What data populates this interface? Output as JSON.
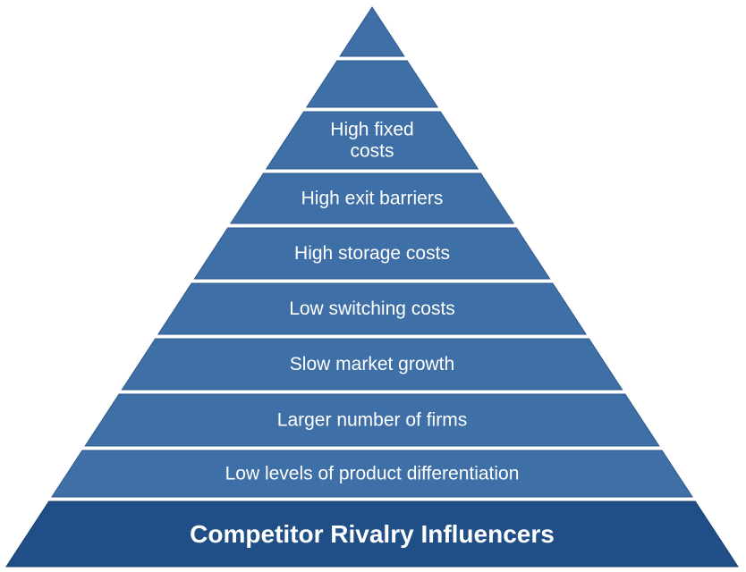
{
  "pyramid": {
    "base_label": "Competitor Rivalry Influencers",
    "tiers": [
      {
        "label": ""
      },
      {
        "label": ""
      },
      {
        "label": "High fixed costs",
        "lines": [
          "High fixed",
          "costs"
        ]
      },
      {
        "label": "High exit barriers"
      },
      {
        "label": "High storage costs"
      },
      {
        "label": "Low switching costs"
      },
      {
        "label": "Slow market growth"
      },
      {
        "label": "Larger number of firms"
      },
      {
        "label": "Low levels of product differentiation"
      }
    ],
    "colors": {
      "tier": "#3e6fa6",
      "base": "#1f4f86",
      "gap": "#ffffff",
      "text": "#ffffff"
    }
  }
}
